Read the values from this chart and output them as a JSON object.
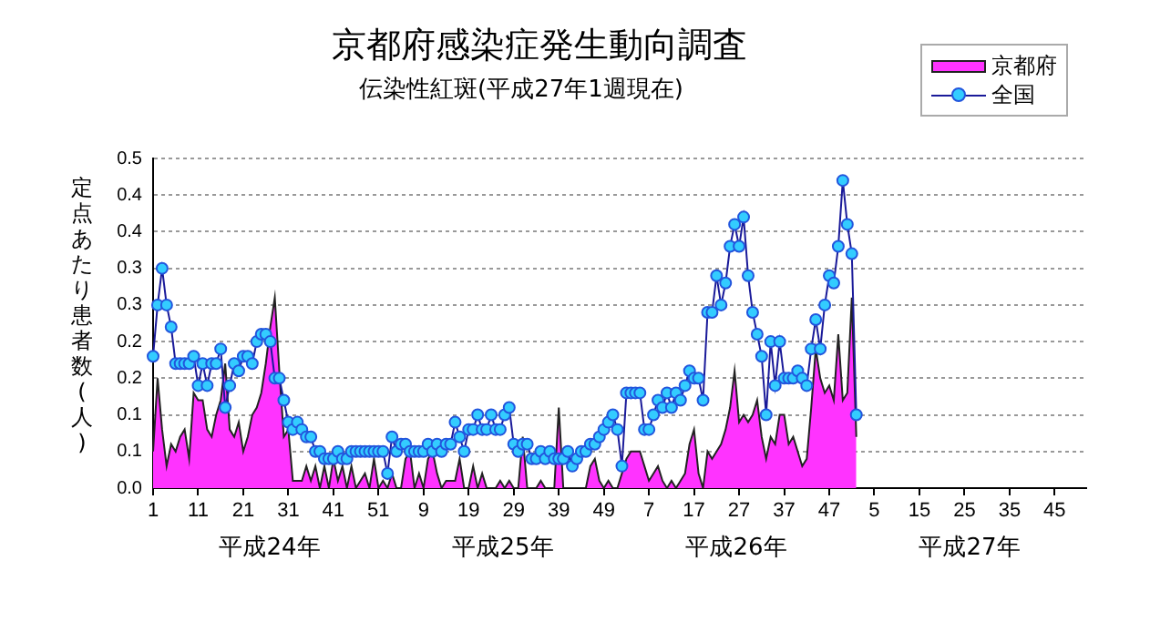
{
  "chart_data": {
    "type": "area",
    "title": "京都府感染症発生動向調査",
    "subtitle": "伝染性紅斑(平成27年1週現在)",
    "ylabel": "定点あたり患者数(人)",
    "categories": [
      "1",
      null,
      null,
      null,
      null,
      null,
      null,
      null,
      null,
      null,
      "11",
      null,
      null,
      null,
      null,
      null,
      null,
      null,
      null,
      null,
      "21",
      null,
      null,
      null,
      null,
      null,
      null,
      null,
      null,
      null,
      "31",
      null,
      null,
      null,
      null,
      null,
      null,
      null,
      null,
      null,
      "41",
      null,
      null,
      null,
      null,
      null,
      null,
      null,
      null,
      null,
      "51",
      null,
      null,
      null,
      null,
      null,
      null,
      null,
      null,
      null,
      "9",
      null,
      null,
      null,
      null,
      null,
      null,
      null,
      null,
      null,
      "19",
      null,
      null,
      null,
      null,
      null,
      null,
      null,
      null,
      null,
      "29",
      null,
      null,
      null,
      null,
      null,
      null,
      null,
      null,
      null,
      "39",
      null,
      null,
      null,
      null,
      null,
      null,
      null,
      null,
      null,
      "49",
      null,
      null,
      null,
      null,
      null,
      null,
      null,
      null,
      null,
      "7",
      null,
      null,
      null,
      null,
      null,
      null,
      null,
      null,
      null,
      "17",
      null,
      null,
      null,
      null,
      null,
      null,
      null,
      null,
      null,
      "27",
      null,
      null,
      null,
      null,
      null,
      null,
      null,
      null,
      null,
      "37",
      null,
      null,
      null,
      null,
      null,
      null,
      null,
      null,
      null,
      "47",
      null,
      null,
      null,
      null,
      null,
      null,
      null,
      null,
      null,
      "5",
      null,
      null,
      null,
      null,
      null,
      null,
      null,
      null,
      null,
      "15",
      null,
      null,
      null,
      null,
      null,
      null,
      null,
      null,
      null,
      "25",
      null,
      null,
      null,
      null,
      null,
      null,
      null,
      null,
      null,
      "35",
      null,
      null,
      null,
      null,
      null,
      null,
      null,
      null,
      null,
      "45",
      null,
      null,
      null,
      null,
      null,
      null,
      null
    ],
    "series": [
      {
        "name": "京都府",
        "color": "#ff33ff",
        "values": [
          0.05,
          0.15,
          0.08,
          0.03,
          0.06,
          0.05,
          0.07,
          0.08,
          0.04,
          0.13,
          0.12,
          0.12,
          0.08,
          0.07,
          0.1,
          0.12,
          0.17,
          0.08,
          0.07,
          0.09,
          0.05,
          0.07,
          0.1,
          0.11,
          0.13,
          0.17,
          0.22,
          0.26,
          0.16,
          0.07,
          0.08,
          0.01,
          0.01,
          0.01,
          0.03,
          0.01,
          0.03,
          0,
          0.03,
          0,
          0.04,
          0.01,
          0.03,
          0,
          0.03,
          0,
          0.01,
          0.02,
          0,
          0.04,
          0,
          0.01,
          0,
          0.02,
          0,
          0,
          0.04,
          0.05,
          0,
          0.02,
          0,
          0.04,
          0.05,
          0.02,
          0,
          0.01,
          0.01,
          0.01,
          0.04,
          0,
          0,
          0.03,
          0,
          0.02,
          0,
          0,
          0,
          0.01,
          0,
          0.01,
          0,
          0,
          0.07,
          0,
          0,
          0,
          0.01,
          0,
          0,
          0,
          0.11,
          0,
          0,
          0,
          0,
          0,
          0,
          0.03,
          0.04,
          0.01,
          0,
          0.01,
          0,
          0,
          0.02,
          0.04,
          0.05,
          0.05,
          0.05,
          0.03,
          0.01,
          0.02,
          0.03,
          0.01,
          0,
          0.01,
          0,
          0.01,
          0.02,
          0.06,
          0.08,
          0.02,
          0,
          0.05,
          0.04,
          0.05,
          0.06,
          0.08,
          0.11,
          0.16,
          0.09,
          0.1,
          0.09,
          0.1,
          0.12,
          0.07,
          0.04,
          0.07,
          0.06,
          0.1,
          0.1,
          0.06,
          0.07,
          0.05,
          0.03,
          0.04,
          0.11,
          0.19,
          0.15,
          0.13,
          0.14,
          0.12,
          0.21,
          0.12,
          0.13,
          0.26,
          0.07,
          null,
          null,
          null,
          null,
          null,
          null,
          null,
          null,
          null,
          null,
          null,
          null,
          null,
          null,
          null,
          null,
          null,
          null,
          null,
          null,
          null,
          null,
          null,
          null,
          null,
          null,
          null,
          null,
          null,
          null,
          null,
          null,
          null,
          null,
          null,
          null,
          null,
          null,
          null,
          null,
          null,
          null,
          null,
          null,
          null,
          null,
          null,
          null,
          null,
          null,
          null
        ]
      },
      {
        "name": "全国",
        "type": "line",
        "marker": "circle",
        "color": "#33ccff",
        "values": [
          0.18,
          0.25,
          0.3,
          0.25,
          0.22,
          0.17,
          0.17,
          0.17,
          0.17,
          0.18,
          0.14,
          0.17,
          0.14,
          0.17,
          0.17,
          0.19,
          0.11,
          0.14,
          0.17,
          0.16,
          0.18,
          0.18,
          0.17,
          0.2,
          0.21,
          0.21,
          0.2,
          0.15,
          0.15,
          0.12,
          0.09,
          0.08,
          0.09,
          0.08,
          0.07,
          0.07,
          0.05,
          0.05,
          0.04,
          0.04,
          0.04,
          0.05,
          0.04,
          0.04,
          0.05,
          0.05,
          0.05,
          0.05,
          0.05,
          0.05,
          0.05,
          0.05,
          0.02,
          0.07,
          0.05,
          0.06,
          0.06,
          0.05,
          0.05,
          0.05,
          0.05,
          0.06,
          0.05,
          0.06,
          0.05,
          0.06,
          0.06,
          0.09,
          0.07,
          0.05,
          0.08,
          0.08,
          0.1,
          0.08,
          0.08,
          0.1,
          0.08,
          0.08,
          0.1,
          0.11,
          0.06,
          0.05,
          0.06,
          0.06,
          0.04,
          0.04,
          0.05,
          0.04,
          0.05,
          0.04,
          0.04,
          0.04,
          0.05,
          0.03,
          0.04,
          0.05,
          0.05,
          0.06,
          0.06,
          0.07,
          0.08,
          0.09,
          0.1,
          0.08,
          0.03,
          0.13,
          0.13,
          0.13,
          0.13,
          0.08,
          0.08,
          0.1,
          0.12,
          0.11,
          0.13,
          0.11,
          0.13,
          0.12,
          0.14,
          0.16,
          0.15,
          0.15,
          0.12,
          0.24,
          0.24,
          0.29,
          0.25,
          0.28,
          0.33,
          0.36,
          0.33,
          0.37,
          0.29,
          0.24,
          0.21,
          0.18,
          0.1,
          0.2,
          0.14,
          0.2,
          0.15,
          0.15,
          0.15,
          0.16,
          0.15,
          0.14,
          0.19,
          0.23,
          0.19,
          0.25,
          0.29,
          0.28,
          0.33,
          0.42,
          0.36,
          0.32,
          0.1,
          null,
          null,
          null,
          null,
          null,
          null,
          null,
          null,
          null,
          null,
          null,
          null,
          null,
          null,
          null,
          null,
          null,
          null,
          null,
          null,
          null,
          null,
          null,
          null,
          null,
          null,
          null,
          null,
          null,
          null,
          null,
          null,
          null,
          null,
          null,
          null,
          null,
          null,
          null,
          null,
          null,
          null,
          null,
          null,
          null,
          null,
          null,
          null,
          null,
          null,
          null
        ]
      }
    ],
    "ylim": [
      0,
      0.45
    ],
    "yticks": [
      {
        "value": 0,
        "label": "0.0"
      },
      {
        "value": 0.05,
        "label": "0.1"
      },
      {
        "value": 0.1,
        "label": "0.1"
      },
      {
        "value": 0.15,
        "label": "0.2"
      },
      {
        "value": 0.2,
        "label": "0.2"
      },
      {
        "value": 0.25,
        "label": "0.3"
      },
      {
        "value": 0.3,
        "label": "0.3"
      },
      {
        "value": 0.35,
        "label": "0.4"
      },
      {
        "value": 0.4,
        "label": "0.4"
      },
      {
        "value": 0.45,
        "label": "0.5"
      }
    ],
    "annotations": [
      "平成24年",
      "平成25年",
      "平成26年",
      "平成27年"
    ],
    "grid": "y",
    "legend": "top right"
  }
}
